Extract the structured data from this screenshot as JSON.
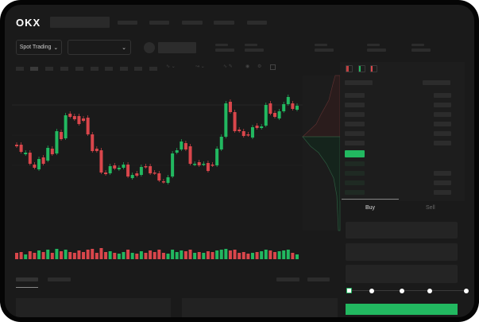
{
  "header": {
    "logo": "OKX"
  },
  "toolbar": {
    "mode_label": "Spot Trading",
    "mode_chevron": "chevron-down-icon",
    "pair_chevron": "chevron-down-icon"
  },
  "trade": {
    "tabs": [
      "Buy",
      "Sell"
    ],
    "active_tab": "Buy",
    "slider_value_percent": 0,
    "slider_stops": 5
  },
  "colors": {
    "up": "#22b860",
    "down": "#d9464b",
    "background": "#1a1a1a",
    "accent": "#22b860"
  },
  "chart_data": {
    "type": "candlestick",
    "candles": [
      {
        "o": 68,
        "c": 66
      },
      {
        "o": 68,
        "c": 59
      },
      {
        "o": 56,
        "c": 58
      },
      {
        "o": 58,
        "c": 44
      },
      {
        "o": 43,
        "c": 39
      },
      {
        "o": 37,
        "c": 50
      },
      {
        "o": 52,
        "c": 44
      },
      {
        "o": 48,
        "c": 64
      },
      {
        "o": 63,
        "c": 56
      },
      {
        "o": 57,
        "c": 85
      },
      {
        "o": 84,
        "c": 75
      },
      {
        "o": 76,
        "c": 105
      },
      {
        "o": 107,
        "c": 103
      },
      {
        "o": 104,
        "c": 100
      },
      {
        "o": 104,
        "c": 94
      },
      {
        "o": 101,
        "c": 98
      },
      {
        "o": 102,
        "c": 81
      },
      {
        "o": 81,
        "c": 60
      },
      {
        "o": 63,
        "c": 60
      },
      {
        "o": 61,
        "c": 33
      },
      {
        "o": 33,
        "c": 31
      },
      {
        "o": 32,
        "c": 41
      },
      {
        "o": 42,
        "c": 38
      },
      {
        "o": 37,
        "c": 39
      },
      {
        "o": 39,
        "c": 43
      },
      {
        "o": 43,
        "c": 28
      },
      {
        "o": 26,
        "c": 30
      },
      {
        "o": 32,
        "c": 29
      },
      {
        "o": 30,
        "c": 40
      },
      {
        "o": 41,
        "c": 40
      },
      {
        "o": 41,
        "c": 32
      },
      {
        "o": 33,
        "c": 32
      },
      {
        "o": 32,
        "c": 23
      },
      {
        "o": 22,
        "c": 21
      },
      {
        "o": 20,
        "c": 27
      },
      {
        "o": 28,
        "c": 57
      },
      {
        "o": 58,
        "c": 61
      },
      {
        "o": 62,
        "c": 72
      },
      {
        "o": 70,
        "c": 62
      },
      {
        "o": 66,
        "c": 44
      },
      {
        "o": 43,
        "c": 44
      },
      {
        "o": 46,
        "c": 42
      },
      {
        "o": 43,
        "c": 44
      },
      {
        "o": 45,
        "c": 35
      },
      {
        "o": 43,
        "c": 42
      },
      {
        "o": 42,
        "c": 63
      },
      {
        "o": 62,
        "c": 78
      },
      {
        "o": 78,
        "c": 120
      },
      {
        "o": 122,
        "c": 109
      },
      {
        "o": 109,
        "c": 85
      },
      {
        "o": 87,
        "c": 85
      },
      {
        "o": 85,
        "c": 79
      },
      {
        "o": 81,
        "c": 80
      },
      {
        "o": 77,
        "c": 90
      },
      {
        "o": 92,
        "c": 89
      },
      {
        "o": 89,
        "c": 91
      },
      {
        "o": 92,
        "c": 118
      },
      {
        "o": 120,
        "c": 107
      },
      {
        "o": 108,
        "c": 103
      },
      {
        "o": 101,
        "c": 110
      },
      {
        "o": 110,
        "c": 119
      },
      {
        "o": 119,
        "c": 128
      },
      {
        "o": 120,
        "c": 113
      },
      {
        "o": 112,
        "c": 117
      }
    ],
    "volume": [
      8,
      9,
      6,
      10,
      8,
      11,
      9,
      12,
      8,
      13,
      10,
      12,
      9,
      8,
      11,
      9,
      12,
      13,
      8,
      14,
      9,
      10,
      8,
      7,
      9,
      12,
      8,
      7,
      10,
      8,
      11,
      9,
      12,
      8,
      7,
      12,
      9,
      11,
      10,
      12,
      8,
      9,
      8,
      10,
      9,
      11,
      12,
      13,
      11,
      12,
      8,
      9,
      7,
      8,
      9,
      10,
      12,
      11,
      9,
      10,
      11,
      12,
      8,
      6
    ]
  }
}
